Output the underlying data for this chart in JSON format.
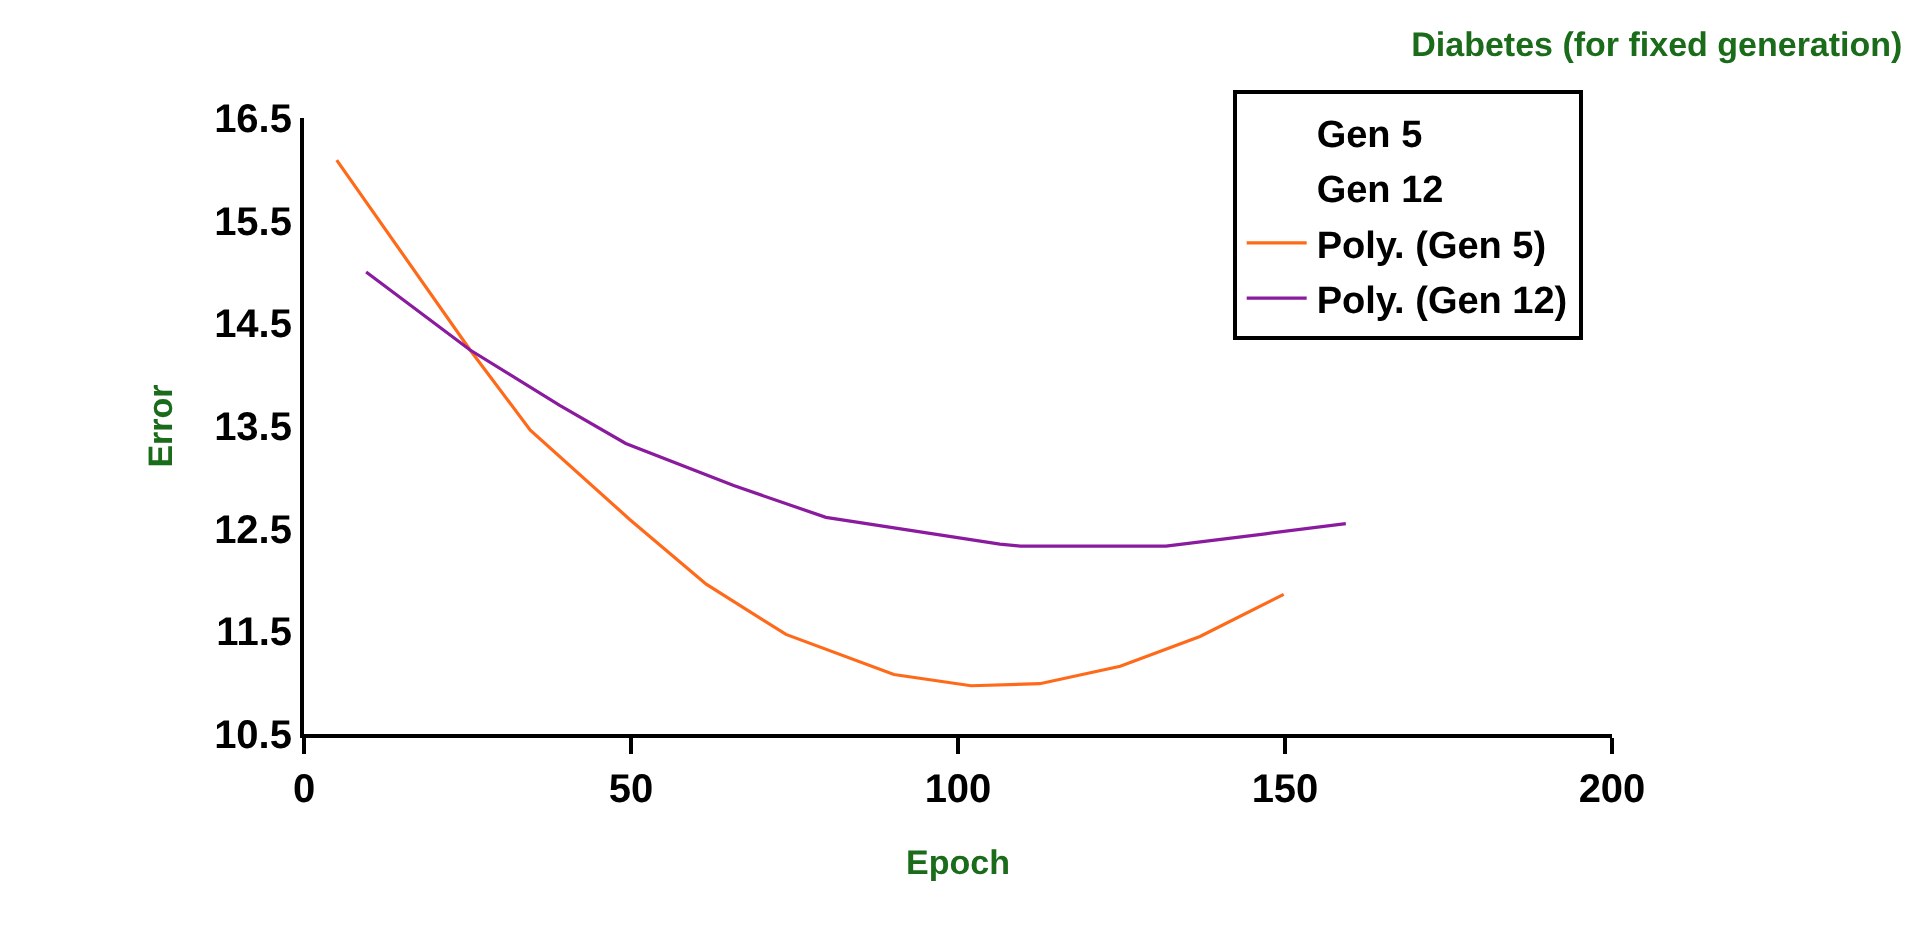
{
  "chart_data": {
    "type": "line",
    "title": "Diabetes (for fixed generation)",
    "xlabel": "Epoch",
    "ylabel": "Error",
    "xlim": [
      0,
      200
    ],
    "xticks": [
      0,
      50,
      100,
      150,
      200
    ],
    "ylim": [
      10.5,
      16.5
    ],
    "yticks": [
      10.5,
      11.5,
      12.5,
      13.5,
      14.5,
      15.5,
      16.5
    ],
    "legend": "top right",
    "marker": "none",
    "line_style": "solid",
    "series": [
      {
        "name": "Gen 5",
        "type": "scatter"
      },
      {
        "name": "Gen 12",
        "type": "scatter"
      },
      {
        "name": "Poly. (Gen 5)",
        "color": "#ff6a1a",
        "x": [
          5,
          25.4,
          34.6,
          49.8,
          61.5,
          73.7,
          90.2,
          102,
          112.5,
          124.8,
          137,
          149.8
        ],
        "values": [
          16.09,
          14.24,
          13.46,
          12.59,
          11.96,
          11.47,
          11.08,
          10.97,
          10.99,
          11.16,
          11.45,
          11.86
        ]
      },
      {
        "name": "Poly. (Gen 12)",
        "color": "#8a1a9e",
        "x": [
          9.5,
          25.4,
          39.1,
          49.2,
          65.7,
          79.8,
          106.4,
          109.5,
          131.8,
          147,
          159.3
        ],
        "values": [
          15.0,
          14.24,
          13.7,
          13.33,
          12.92,
          12.61,
          12.35,
          12.33,
          12.33,
          12.45,
          12.55
        ]
      }
    ]
  }
}
